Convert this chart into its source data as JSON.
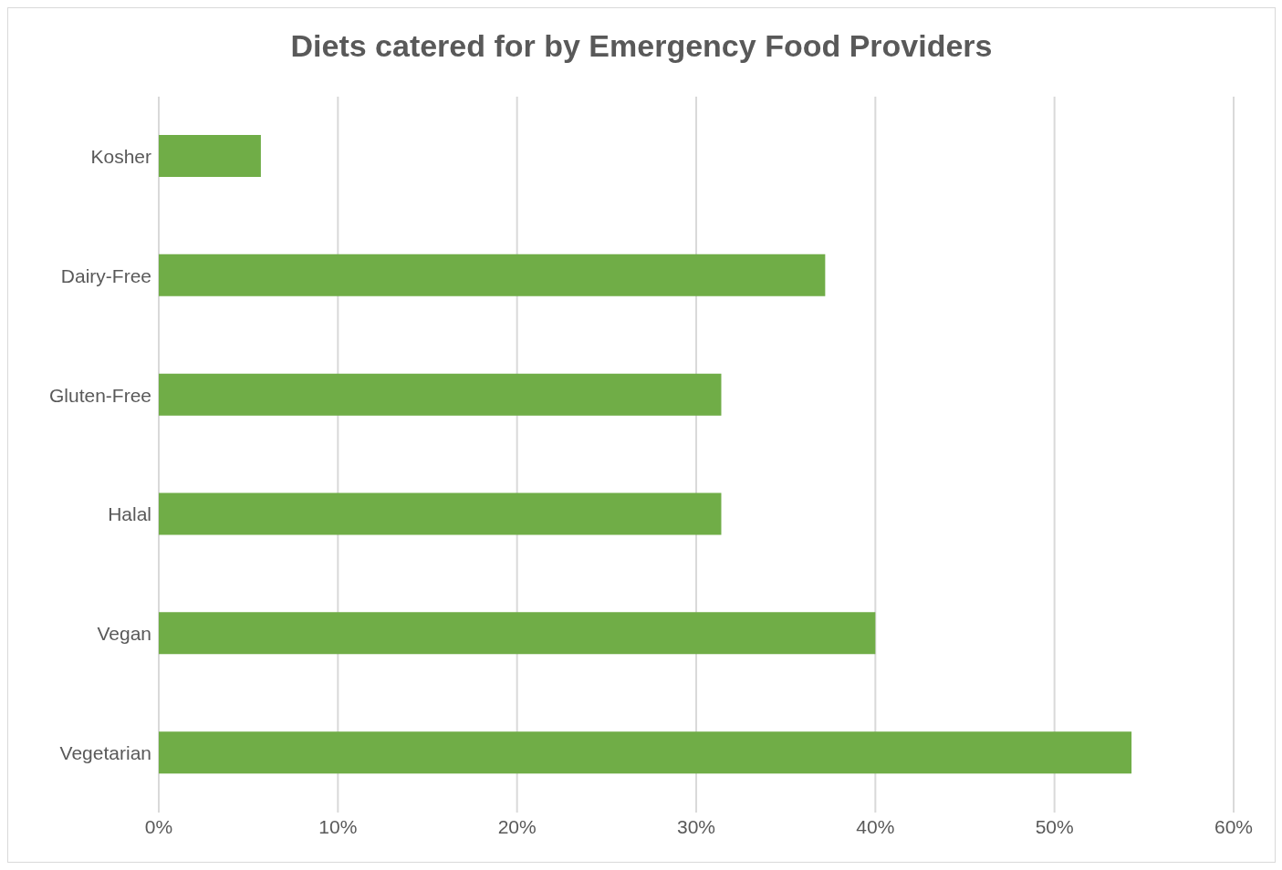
{
  "chart_data": {
    "type": "bar",
    "orientation": "horizontal",
    "title": "Diets catered for by Emergency Food Providers",
    "categories": [
      "Kosher",
      "Dairy-Free",
      "Gluten-Free",
      "Halal",
      "Vegan",
      "Vegetarian"
    ],
    "values": [
      5.7,
      37.2,
      31.4,
      31.4,
      40.0,
      54.3
    ],
    "color": "#70ad47",
    "xlim": [
      0,
      60
    ],
    "xticks": [
      {
        "value": 0,
        "label": "0%"
      },
      {
        "value": 10,
        "label": "10%"
      },
      {
        "value": 20,
        "label": "20%"
      },
      {
        "value": 30,
        "label": "30%"
      },
      {
        "value": 40,
        "label": "40%"
      },
      {
        "value": 50,
        "label": "50%"
      },
      {
        "value": 60,
        "label": "60%"
      }
    ],
    "grid": "x",
    "legend": false
  }
}
